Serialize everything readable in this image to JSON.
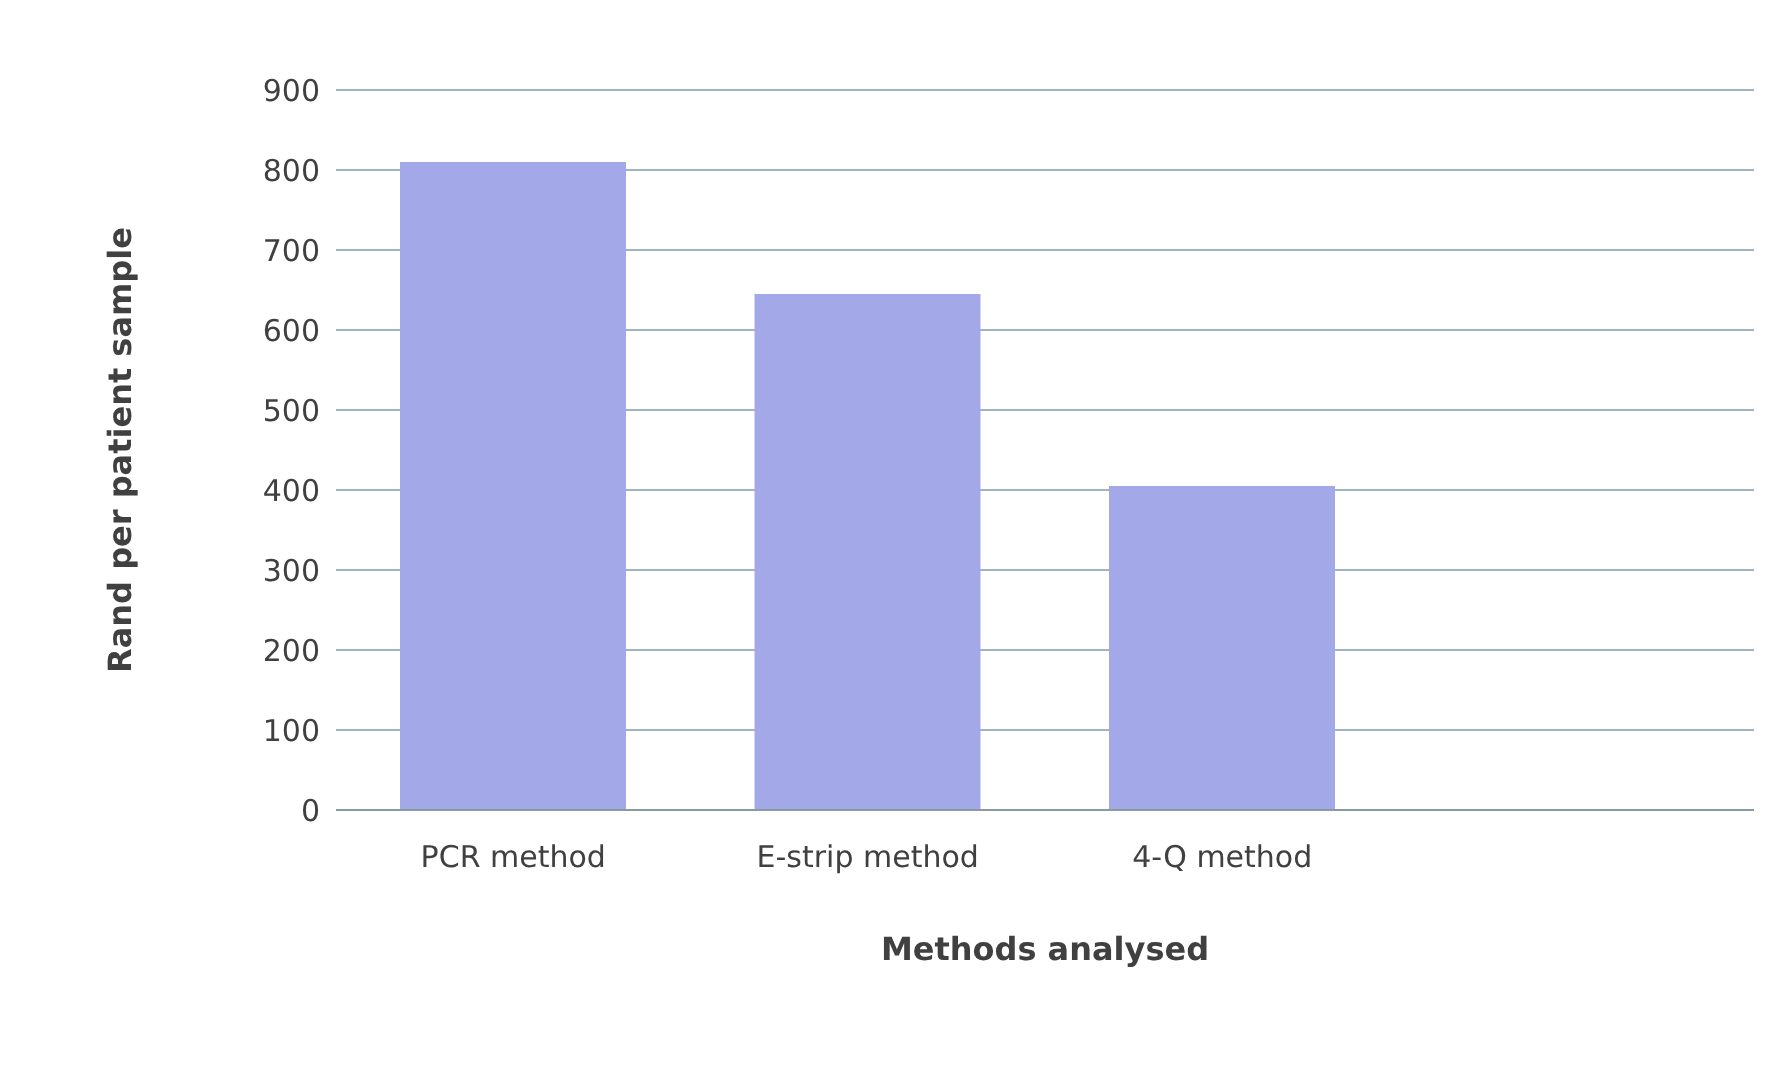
{
  "chart_data": {
    "type": "bar",
    "xlabel": "Methods analysed",
    "ylabel": "Rand per patient sample",
    "categories": [
      "PCR method",
      "E-strip method",
      "4-Q method",
      null
    ],
    "values": [
      810,
      645,
      405,
      null
    ],
    "color": "#a3a9e8",
    "ylim": [
      0,
      900
    ],
    "yticks": [
      0,
      100,
      200,
      300,
      400,
      500,
      600,
      700,
      800,
      900
    ],
    "grid": "y"
  }
}
